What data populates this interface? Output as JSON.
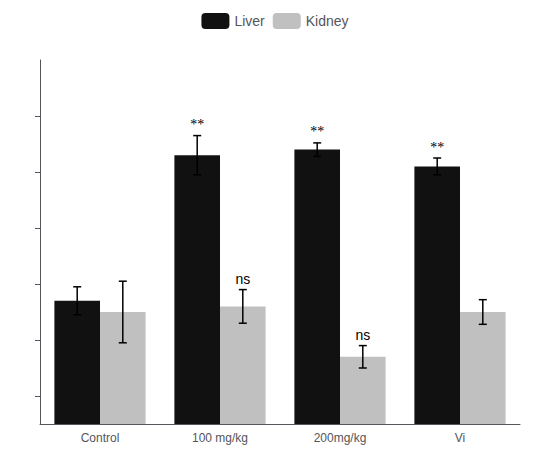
{
  "chart_data": {
    "type": "bar",
    "categories": [
      "Control",
      "100 mg/kg",
      "200mg/kg",
      "Vi"
    ],
    "series": [
      {
        "name": "Liver",
        "color": "#111111",
        "values": [
          5.2,
          7.8,
          7.9,
          7.6
        ],
        "errors": [
          0.25,
          0.35,
          0.12,
          0.15
        ],
        "annotations": [
          null,
          "**",
          "**",
          "**"
        ]
      },
      {
        "name": "Kidney",
        "color": "#c0c0c0",
        "values": [
          5.0,
          5.1,
          4.2,
          5.0
        ],
        "errors": [
          0.55,
          0.3,
          0.2,
          0.22
        ],
        "annotations": [
          null,
          "ns",
          "ns",
          null
        ]
      }
    ],
    "ylim": [
      3.0,
      9.5
    ],
    "yticks": [
      3.5,
      4.5,
      5.5,
      6.5,
      7.5,
      8.5
    ],
    "tick_labels": "x",
    "grid": false,
    "legend": "top"
  }
}
